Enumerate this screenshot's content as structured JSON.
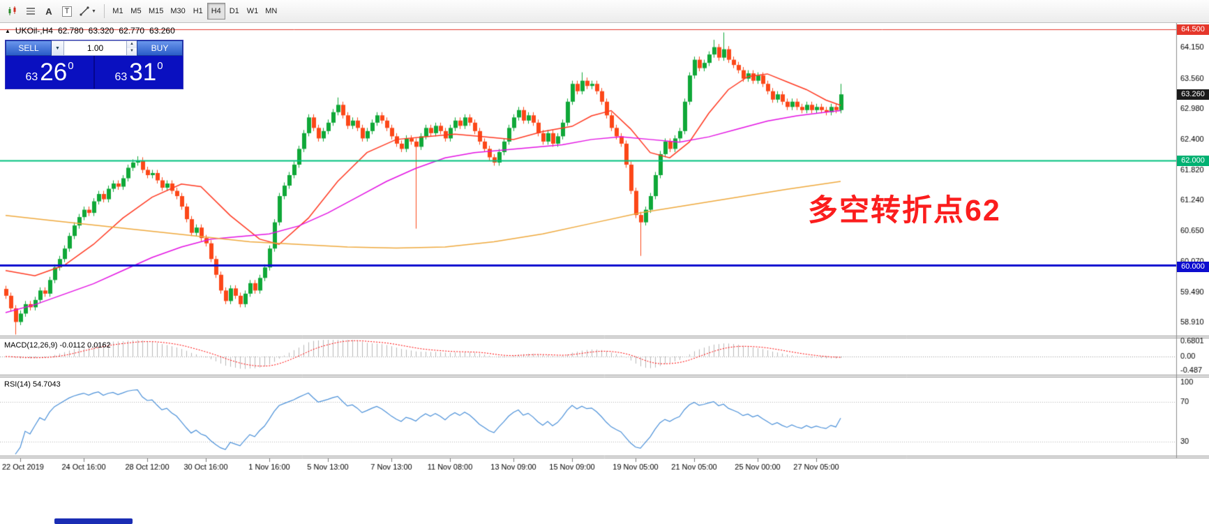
{
  "toolbar": {
    "icons": [
      {
        "name": "candlestick-chart-icon"
      },
      {
        "name": "indicator-window-icon"
      },
      {
        "name": "text-label-icon",
        "glyph": "A"
      },
      {
        "name": "text-box-icon",
        "glyph": "T"
      },
      {
        "name": "drawing-tools-icon"
      }
    ],
    "timeframes": [
      {
        "label": "M1"
      },
      {
        "label": "M5"
      },
      {
        "label": "M15"
      },
      {
        "label": "M30"
      },
      {
        "label": "H1"
      },
      {
        "label": "H4",
        "active": true
      },
      {
        "label": "D1"
      },
      {
        "label": "W1"
      },
      {
        "label": "MN"
      }
    ]
  },
  "ohlc_header": {
    "marker": "▲",
    "symbol": "UKOil-,H4",
    "open": "62.780",
    "high": "63.320",
    "low": "62.770",
    "close": "63.260"
  },
  "trade_panel": {
    "sell": "SELL",
    "buy": "BUY",
    "lot": "1.00",
    "bid": {
      "big_figure": "63",
      "pips": "26",
      "point": "0"
    },
    "ask": {
      "big_figure": "63",
      "pips": "31",
      "point": "0"
    }
  },
  "annotation": {
    "text": "多空转折点62",
    "color": "#fb1d1d"
  },
  "y_badges": [
    {
      "text": "64.500",
      "color": "#e5372b"
    },
    {
      "text": "63.260",
      "color": "#1a1a1a"
    },
    {
      "text": "62.000",
      "color": "#00b172"
    },
    {
      "text": "60.000",
      "color": "#0d0dcf"
    }
  ],
  "chart_data": {
    "type": "candlestick",
    "symbol": "UKOil-",
    "period": "H4",
    "current_ohlc": {
      "open": 62.78,
      "high": 63.32,
      "low": 62.77,
      "close": 63.26
    },
    "y_axis": {
      "labels": [
        "64.150",
        "63.560",
        "62.980",
        "62.400",
        "61.820",
        "61.240",
        "60.650",
        "60.070",
        "59.490",
        "58.910"
      ],
      "range": [
        58.66,
        64.62
      ]
    },
    "x_axis": {
      "labels": [
        {
          "text": "22 Oct 2019",
          "i": 3
        },
        {
          "text": "24 Oct 16:00",
          "i": 16
        },
        {
          "text": "28 Oct 12:00",
          "i": 29
        },
        {
          "text": "30 Oct 16:00",
          "i": 41
        },
        {
          "text": "1 Nov 16:00",
          "i": 54
        },
        {
          "text": "5 Nov 13:00",
          "i": 66
        },
        {
          "text": "7 Nov 13:00",
          "i": 79
        },
        {
          "text": "11 Nov 08:00",
          "i": 91
        },
        {
          "text": "13 Nov 09:00",
          "i": 104
        },
        {
          "text": "15 Nov 09:00",
          "i": 116
        },
        {
          "text": "19 Nov 05:00",
          "i": 129
        },
        {
          "text": "21 Nov 05:00",
          "i": 141
        },
        {
          "text": "25 Nov 00:00",
          "i": 154
        },
        {
          "text": "27 Nov 05:00",
          "i": 166
        }
      ]
    },
    "hlines": [
      {
        "price": 64.5,
        "color": "#e5372b",
        "width": 1
      },
      {
        "price": 62.0,
        "color": "#00c17e",
        "width": 2
      },
      {
        "price": 60.0,
        "color": "#0d0dcf",
        "width": 3
      }
    ],
    "candles": {
      "up_color": "#0fa838",
      "down_color": "#fc4718",
      "first_open": 59.55,
      "closes": [
        59.42,
        59.18,
        58.92,
        59.08,
        59.26,
        59.2,
        59.34,
        59.52,
        59.46,
        59.72,
        59.96,
        60.12,
        60.32,
        60.56,
        60.76,
        60.92,
        61.06,
        61.0,
        61.22,
        61.36,
        61.26,
        61.46,
        61.56,
        61.5,
        61.66,
        61.86,
        61.96,
        62.0,
        61.82,
        61.72,
        61.76,
        61.62,
        61.48,
        61.56,
        61.42,
        61.32,
        61.12,
        60.88,
        60.62,
        60.72,
        60.52,
        60.42,
        60.12,
        59.82,
        59.52,
        59.32,
        59.56,
        59.42,
        59.26,
        59.46,
        59.66,
        59.52,
        59.76,
        59.96,
        60.32,
        60.82,
        61.32,
        61.52,
        61.72,
        61.92,
        62.22,
        62.52,
        62.82,
        62.62,
        62.42,
        62.56,
        62.72,
        62.92,
        63.06,
        62.86,
        62.66,
        62.76,
        62.62,
        62.42,
        62.56,
        62.72,
        62.86,
        62.76,
        62.62,
        62.46,
        62.32,
        62.22,
        62.42,
        62.36,
        62.26,
        62.46,
        62.62,
        62.52,
        62.66,
        62.56,
        62.42,
        62.62,
        62.76,
        62.66,
        62.82,
        62.72,
        62.56,
        62.36,
        62.22,
        62.06,
        61.96,
        62.16,
        62.36,
        62.62,
        62.82,
        62.96,
        62.76,
        62.86,
        62.72,
        62.52,
        62.36,
        62.52,
        62.32,
        62.46,
        62.72,
        63.12,
        63.46,
        63.32,
        63.52,
        63.42,
        63.46,
        63.32,
        63.12,
        62.86,
        62.62,
        62.46,
        62.32,
        61.92,
        61.42,
        60.96,
        60.82,
        61.06,
        61.32,
        61.72,
        62.12,
        62.36,
        62.22,
        62.42,
        62.56,
        63.12,
        63.62,
        63.92,
        63.76,
        63.86,
        64.02,
        64.16,
        63.96,
        64.12,
        63.92,
        63.82,
        63.72,
        63.56,
        63.66,
        63.52,
        63.62,
        63.46,
        63.32,
        63.16,
        63.26,
        63.12,
        63.02,
        63.12,
        63.02,
        62.96,
        63.06,
        62.96,
        63.02,
        62.96,
        62.92,
        63.02,
        62.96,
        63.26
      ],
      "wick_overrides": {
        "2": {
          "l": 58.68
        },
        "27": {
          "h": 62.08
        },
        "68": {
          "h": 63.2
        },
        "84": {
          "l": 60.7
        },
        "118": {
          "h": 63.68
        },
        "130": {
          "l": 60.18
        },
        "145": {
          "h": 64.3
        },
        "147": {
          "h": 64.44
        },
        "171": {
          "h": 63.46
        }
      }
    },
    "moving_averages": [
      {
        "name": "fast-ma",
        "color": "#ff3820",
        "points": [
          [
            0,
            59.9
          ],
          [
            6,
            59.8
          ],
          [
            12,
            60.0
          ],
          [
            18,
            60.4
          ],
          [
            24,
            60.9
          ],
          [
            30,
            61.3
          ],
          [
            36,
            61.55
          ],
          [
            40,
            61.5
          ],
          [
            46,
            60.95
          ],
          [
            52,
            60.5
          ],
          [
            56,
            60.4
          ],
          [
            62,
            60.9
          ],
          [
            68,
            61.6
          ],
          [
            74,
            62.15
          ],
          [
            80,
            62.4
          ],
          [
            86,
            62.45
          ],
          [
            92,
            62.5
          ],
          [
            98,
            62.45
          ],
          [
            104,
            62.4
          ],
          [
            110,
            62.55
          ],
          [
            116,
            62.65
          ],
          [
            120,
            62.85
          ],
          [
            124,
            62.95
          ],
          [
            128,
            62.6
          ],
          [
            132,
            62.15
          ],
          [
            136,
            62.05
          ],
          [
            140,
            62.35
          ],
          [
            144,
            62.9
          ],
          [
            148,
            63.35
          ],
          [
            152,
            63.6
          ],
          [
            156,
            63.65
          ],
          [
            160,
            63.5
          ],
          [
            164,
            63.35
          ],
          [
            168,
            63.15
          ],
          [
            171,
            63.05
          ]
        ]
      },
      {
        "name": "medium-ma",
        "color": "#e312e3",
        "points": [
          [
            0,
            59.1
          ],
          [
            6,
            59.25
          ],
          [
            12,
            59.45
          ],
          [
            18,
            59.65
          ],
          [
            24,
            59.9
          ],
          [
            30,
            60.15
          ],
          [
            36,
            60.35
          ],
          [
            42,
            60.5
          ],
          [
            48,
            60.55
          ],
          [
            54,
            60.6
          ],
          [
            60,
            60.75
          ],
          [
            66,
            61.0
          ],
          [
            72,
            61.3
          ],
          [
            78,
            61.6
          ],
          [
            84,
            61.85
          ],
          [
            90,
            62.05
          ],
          [
            96,
            62.15
          ],
          [
            102,
            62.2
          ],
          [
            108,
            62.25
          ],
          [
            114,
            62.3
          ],
          [
            120,
            62.4
          ],
          [
            126,
            62.45
          ],
          [
            132,
            62.4
          ],
          [
            138,
            62.35
          ],
          [
            144,
            62.45
          ],
          [
            150,
            62.6
          ],
          [
            156,
            62.75
          ],
          [
            162,
            62.85
          ],
          [
            168,
            62.92
          ],
          [
            171,
            62.95
          ]
        ]
      },
      {
        "name": "slow-ma",
        "color": "#efa93c",
        "points": [
          [
            0,
            60.95
          ],
          [
            10,
            60.85
          ],
          [
            20,
            60.75
          ],
          [
            30,
            60.65
          ],
          [
            40,
            60.55
          ],
          [
            50,
            60.45
          ],
          [
            60,
            60.4
          ],
          [
            70,
            60.35
          ],
          [
            80,
            60.33
          ],
          [
            90,
            60.35
          ],
          [
            100,
            60.45
          ],
          [
            110,
            60.6
          ],
          [
            120,
            60.8
          ],
          [
            130,
            61.0
          ],
          [
            140,
            61.15
          ],
          [
            150,
            61.3
          ],
          [
            160,
            61.45
          ],
          [
            171,
            61.6
          ]
        ]
      }
    ],
    "indicators": [
      {
        "name": "MACD",
        "label": "MACD(12,26,9) -0.0112 0.0162",
        "main": -0.0112,
        "signal": 0.0162,
        "scale": [
          "0.6801",
          "0.00",
          "-0.487"
        ],
        "histogram_color": "#b8b8b8",
        "signal_color": "#ff0000"
      },
      {
        "name": "RSI",
        "label": "RSI(14) 54.7043",
        "value": 54.7043,
        "levels": [
          70,
          30
        ],
        "scale": [
          "100",
          "70",
          "30"
        ],
        "line_color": "#4a90d9"
      }
    ]
  }
}
